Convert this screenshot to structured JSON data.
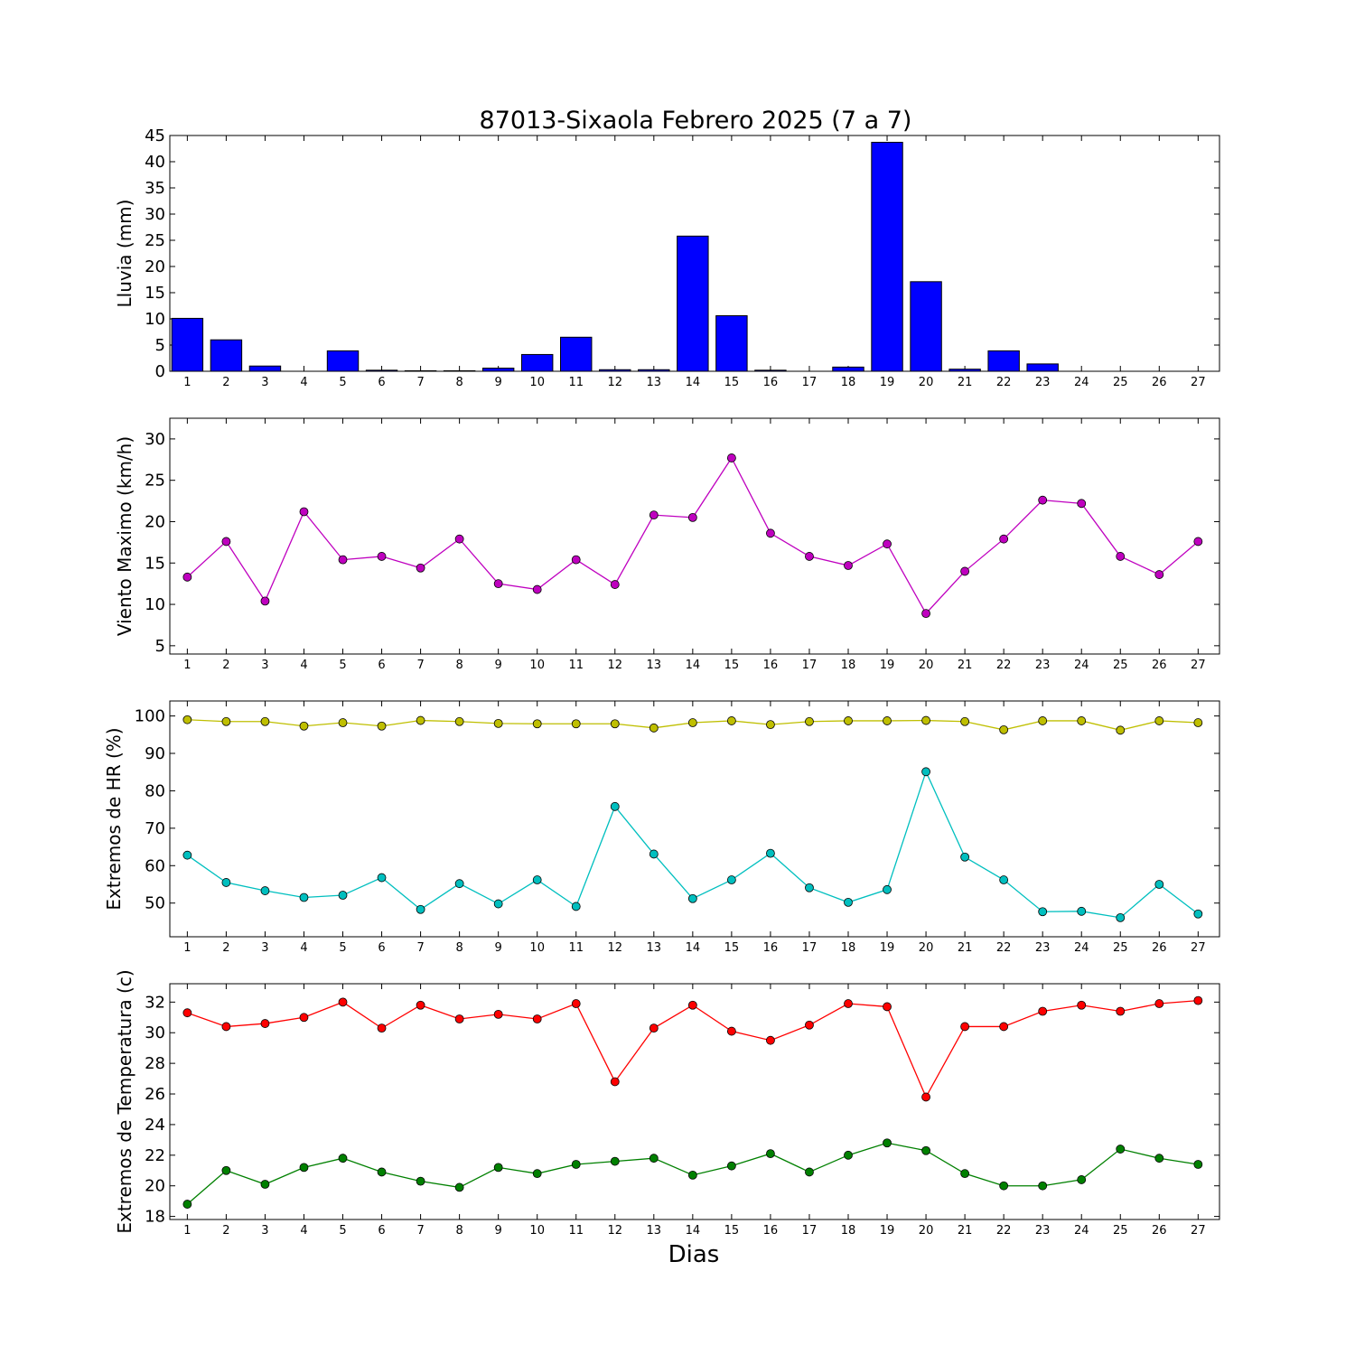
{
  "title": "87013-Sixaola Febrero 2025  (7 a 7)",
  "xlabel": "Dias",
  "chart_data": [
    {
      "type": "bar",
      "ylabel": "Lluvia (mm)",
      "x": [
        1,
        2,
        3,
        4,
        5,
        6,
        7,
        8,
        9,
        10,
        11,
        12,
        13,
        14,
        15,
        16,
        17,
        18,
        19,
        20,
        21,
        22,
        23,
        24,
        25,
        26,
        27
      ],
      "ylim": [
        0,
        45
      ],
      "yticks": [
        0,
        5,
        10,
        15,
        20,
        25,
        30,
        35,
        40,
        45
      ],
      "color": "#0000ff",
      "series": [
        {
          "values": [
            10.1,
            6.0,
            1.0,
            0.0,
            3.9,
            0.2,
            0.1,
            0.1,
            0.6,
            3.2,
            6.5,
            0.3,
            0.3,
            25.8,
            10.6,
            0.2,
            0.0,
            0.8,
            43.7,
            17.1,
            0.4,
            3.9,
            1.4,
            0.0,
            0.0,
            0.0,
            0.0
          ]
        }
      ]
    },
    {
      "type": "line",
      "ylabel": "Viento Maximo (km/h)",
      "x": [
        1,
        2,
        3,
        4,
        5,
        6,
        7,
        8,
        9,
        10,
        11,
        12,
        13,
        14,
        15,
        16,
        17,
        18,
        19,
        20,
        21,
        22,
        23,
        24,
        25,
        26,
        27
      ],
      "ylim": [
        4,
        32.5
      ],
      "yticks": [
        5,
        10,
        15,
        20,
        25,
        30
      ],
      "series": [
        {
          "color": "#bf00bf",
          "values": [
            13.3,
            17.6,
            10.4,
            21.2,
            15.4,
            15.8,
            14.4,
            17.9,
            12.5,
            11.8,
            15.4,
            12.4,
            20.8,
            20.5,
            27.7,
            18.6,
            15.8,
            14.7,
            17.3,
            8.9,
            14.0,
            17.9,
            22.6,
            22.2,
            15.8,
            13.6,
            17.6
          ]
        }
      ]
    },
    {
      "type": "line",
      "ylabel": "Extremos de HR (%)",
      "x": [
        1,
        2,
        3,
        4,
        5,
        6,
        7,
        8,
        9,
        10,
        11,
        12,
        13,
        14,
        15,
        16,
        17,
        18,
        19,
        20,
        21,
        22,
        23,
        24,
        25,
        26,
        27
      ],
      "ylim": [
        41,
        104
      ],
      "yticks": [
        50,
        60,
        70,
        80,
        90,
        100
      ],
      "series": [
        {
          "color": "#bfbf00",
          "values": [
            99.0,
            98.5,
            98.5,
            97.3,
            98.2,
            97.3,
            98.8,
            98.5,
            98.0,
            97.9,
            97.9,
            97.9,
            96.8,
            98.2,
            98.7,
            97.7,
            98.5,
            98.7,
            98.7,
            98.8,
            98.5,
            96.3,
            98.7,
            98.7,
            96.2,
            98.7,
            98.2
          ]
        },
        {
          "color": "#00bfbf",
          "values": [
            62.8,
            55.5,
            53.3,
            51.5,
            52.1,
            56.8,
            48.3,
            55.2,
            49.8,
            56.2,
            49.1,
            75.8,
            63.1,
            51.2,
            56.2,
            63.3,
            54.1,
            50.2,
            53.6,
            85.1,
            62.3,
            56.2,
            47.7,
            47.8,
            46.1,
            55.0,
            47.1
          ]
        }
      ]
    },
    {
      "type": "line",
      "ylabel": "Extremos de Temperatura (c)",
      "x": [
        1,
        2,
        3,
        4,
        5,
        6,
        7,
        8,
        9,
        10,
        11,
        12,
        13,
        14,
        15,
        16,
        17,
        18,
        19,
        20,
        21,
        22,
        23,
        24,
        25,
        26,
        27
      ],
      "ylim": [
        17.8,
        33.2
      ],
      "yticks": [
        18,
        20,
        22,
        24,
        26,
        28,
        30,
        32
      ],
      "series": [
        {
          "color": "#ff0000",
          "values": [
            31.3,
            30.4,
            30.6,
            31.0,
            32.0,
            30.3,
            31.8,
            30.9,
            31.2,
            30.9,
            31.9,
            26.8,
            30.3,
            31.8,
            30.1,
            29.5,
            30.5,
            31.9,
            31.7,
            25.8,
            30.4,
            30.4,
            31.4,
            31.8,
            31.4,
            31.9,
            32.1
          ]
        },
        {
          "color": "#008000",
          "values": [
            18.8,
            21.0,
            20.1,
            21.2,
            21.8,
            20.9,
            20.3,
            19.9,
            21.2,
            20.8,
            21.4,
            21.6,
            21.8,
            20.7,
            21.3,
            22.1,
            20.9,
            22.0,
            22.8,
            22.3,
            20.8,
            20.0,
            20.0,
            20.4,
            22.4,
            21.8,
            21.4
          ]
        }
      ]
    }
  ]
}
